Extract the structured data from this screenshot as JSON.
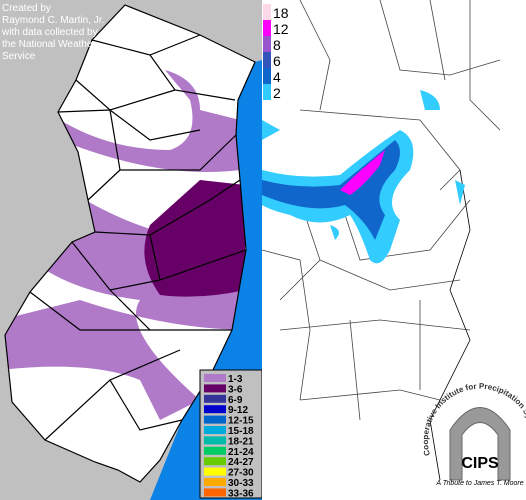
{
  "credit": {
    "lines": [
      "Created by",
      "Raymond C. Martin, Jr.",
      "with data collected by",
      "the National Weather",
      "Service"
    ]
  },
  "left_legend": {
    "items": [
      {
        "label": "1-3",
        "color": "#b07ac8"
      },
      {
        "label": "3-6",
        "color": "#660066"
      },
      {
        "label": "6-9",
        "color": "#333399"
      },
      {
        "label": "9-12",
        "color": "#0000cc"
      },
      {
        "label": "12-15",
        "color": "#0066cc"
      },
      {
        "label": "15-18",
        "color": "#00aadd"
      },
      {
        "label": "18-21",
        "color": "#00bbaa"
      },
      {
        "label": "21-24",
        "color": "#00cc66"
      },
      {
        "label": "24-27",
        "color": "#66cc00"
      },
      {
        "label": "27-30",
        "color": "#ffff00"
      },
      {
        "label": "30-33",
        "color": "#ffaa00"
      },
      {
        "label": "33-36",
        "color": "#ff6600"
      }
    ]
  },
  "right_legend": {
    "items": [
      {
        "label": "18",
        "color": "#ffd8e8"
      },
      {
        "label": "12",
        "color": "#ff00ff"
      },
      {
        "label": "8",
        "color": "#9955cc"
      },
      {
        "label": "6",
        "color": "#3355bb"
      },
      {
        "label": "4",
        "color": "#1166cc"
      },
      {
        "label": "2",
        "color": "#33ccff"
      }
    ]
  },
  "logo": {
    "arc_text": "Cooperative Institute for Precipitation Systems",
    "name": "CIPS",
    "tribute": "A Tribute to James T. Moore"
  }
}
